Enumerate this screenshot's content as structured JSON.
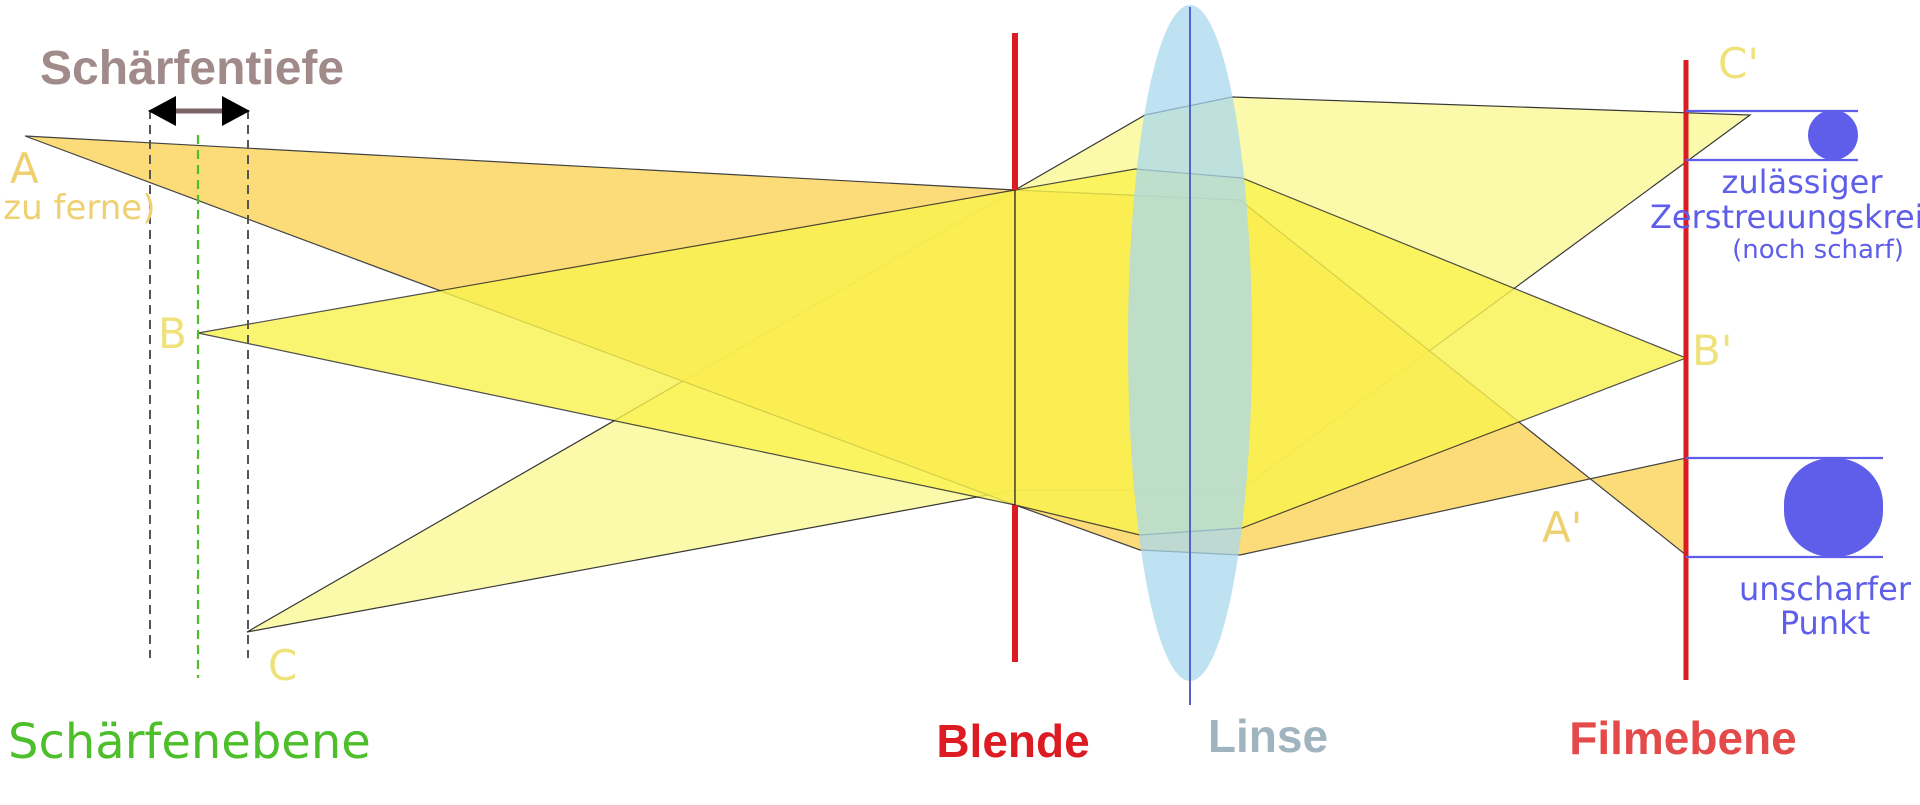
{
  "labels": {
    "depth_of_field": "Schärfentiefe",
    "focus_plane": "Schärfenebene",
    "aperture": "Blende",
    "lens": "Linse",
    "film_plane": "Filmebene",
    "point_a": "A",
    "point_a_note": "(zu ferne)",
    "point_b": "B",
    "point_c": "C",
    "image_a": "A'",
    "image_b": "B'",
    "image_c": "C'",
    "coc_allowed_line1": "zulässiger",
    "coc_allowed_line2": "Zerstreuungskreis",
    "coc_allowed_line3": "(noch scharf)",
    "blur_line1": "unscharfer",
    "blur_line2": "Punkt"
  },
  "colors": {
    "depth_title": "#a08a8a",
    "focus_green": "#4cbf2a",
    "aperture_red": "#dd1b22",
    "film_red": "#e44a4a",
    "lens_fill": "#a9d8ef",
    "lens_axis": "#5562c6",
    "coc_blue": "#5e5eea",
    "point_yellow": "#efe27a",
    "point_orange": "#efd070",
    "beam_a": "#fcd762",
    "beam_b": "#faf34e",
    "beam_c": "#fbf9a1"
  }
}
